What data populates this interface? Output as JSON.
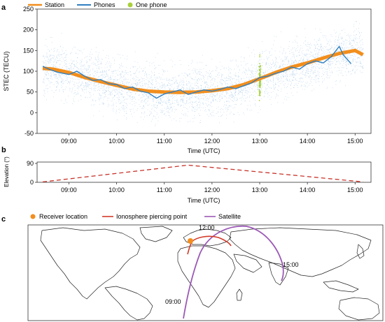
{
  "chart_data": [
    {
      "panel": "a",
      "type": "line",
      "ylabel": "STEC (TECU)",
      "xlabel": "Time (UTC)",
      "ylim": [
        -50,
        250
      ],
      "yticks": [
        -50,
        0,
        50,
        100,
        150,
        200,
        250
      ],
      "xlim": [
        "08:20",
        "15:20"
      ],
      "xticks": [
        "09:00",
        "10:00",
        "11:00",
        "12:00",
        "13:00",
        "14:00",
        "15:00"
      ],
      "legend": {
        "placement": "top-left",
        "entries": [
          "Station",
          "Phones",
          "One phone"
        ]
      },
      "series": [
        {
          "name": "Station",
          "color": "#f28e1c",
          "x": [
            "08:27",
            "08:40",
            "09:00",
            "09:20",
            "09:40",
            "10:00",
            "10:20",
            "10:40",
            "11:00",
            "11:20",
            "11:40",
            "12:00",
            "12:20",
            "12:40",
            "13:00",
            "13:20",
            "13:40",
            "14:00",
            "14:20",
            "14:40",
            "15:00",
            "15:10"
          ],
          "y": [
            107,
            105,
            97,
            85,
            75,
            66,
            57,
            52,
            50,
            49,
            50,
            53,
            58,
            68,
            82,
            97,
            110,
            120,
            132,
            143,
            150,
            140
          ]
        },
        {
          "name": "Phones",
          "color": "#2f7fc1",
          "x": [
            "08:27",
            "08:35",
            "08:45",
            "09:00",
            "09:10",
            "09:20",
            "09:30",
            "09:40",
            "09:50",
            "10:00",
            "10:10",
            "10:20",
            "10:30",
            "10:40",
            "10:50",
            "11:00",
            "11:10",
            "11:20",
            "11:30",
            "11:40",
            "11:50",
            "12:00",
            "12:10",
            "12:20",
            "12:30",
            "12:40",
            "12:50",
            "13:00",
            "13:10",
            "13:20",
            "13:30",
            "13:40",
            "13:50",
            "14:00",
            "14:10",
            "14:20",
            "14:30",
            "14:40",
            "14:45",
            "14:55"
          ],
          "y": [
            112,
            105,
            98,
            92,
            100,
            88,
            78,
            80,
            70,
            68,
            58,
            62,
            52,
            48,
            35,
            45,
            50,
            55,
            44,
            50,
            55,
            52,
            56,
            62,
            58,
            65,
            72,
            85,
            88,
            95,
            100,
            110,
            105,
            118,
            125,
            120,
            135,
            160,
            140,
            118
          ]
        },
        {
          "name": "One phone",
          "color": "#a8d03a",
          "x": [
            "12:59",
            "13:00",
            "13:01"
          ],
          "y": [
            105,
            82,
            55
          ]
        }
      ]
    },
    {
      "panel": "b",
      "type": "line",
      "ylabel": "Elevation (°)",
      "xlabel": "Time (UTC)",
      "ylim": [
        0,
        90
      ],
      "yticks": [
        0,
        90
      ],
      "xticks": [
        "09:00",
        "10:00",
        "11:00",
        "12:00",
        "13:00",
        "14:00",
        "15:00"
      ],
      "series": [
        {
          "name": "",
          "color": "#c8342b",
          "style": "dashed",
          "x": [
            "08:27",
            "11:30",
            "15:10"
          ],
          "y": [
            2,
            82,
            2
          ]
        }
      ]
    }
  ],
  "map": {
    "panel": "c",
    "legend": [
      "Receiver location",
      "Ionosphere piercing point",
      "Satellite"
    ],
    "satellite_time_labels": [
      "12:00",
      "15:00",
      "09:00"
    ],
    "colors": {
      "receiver": "#f28e1c",
      "ipp": "#d23a2a",
      "satellite": "#9b59b6"
    }
  },
  "panel_labels": [
    "a",
    "b",
    "c"
  ]
}
